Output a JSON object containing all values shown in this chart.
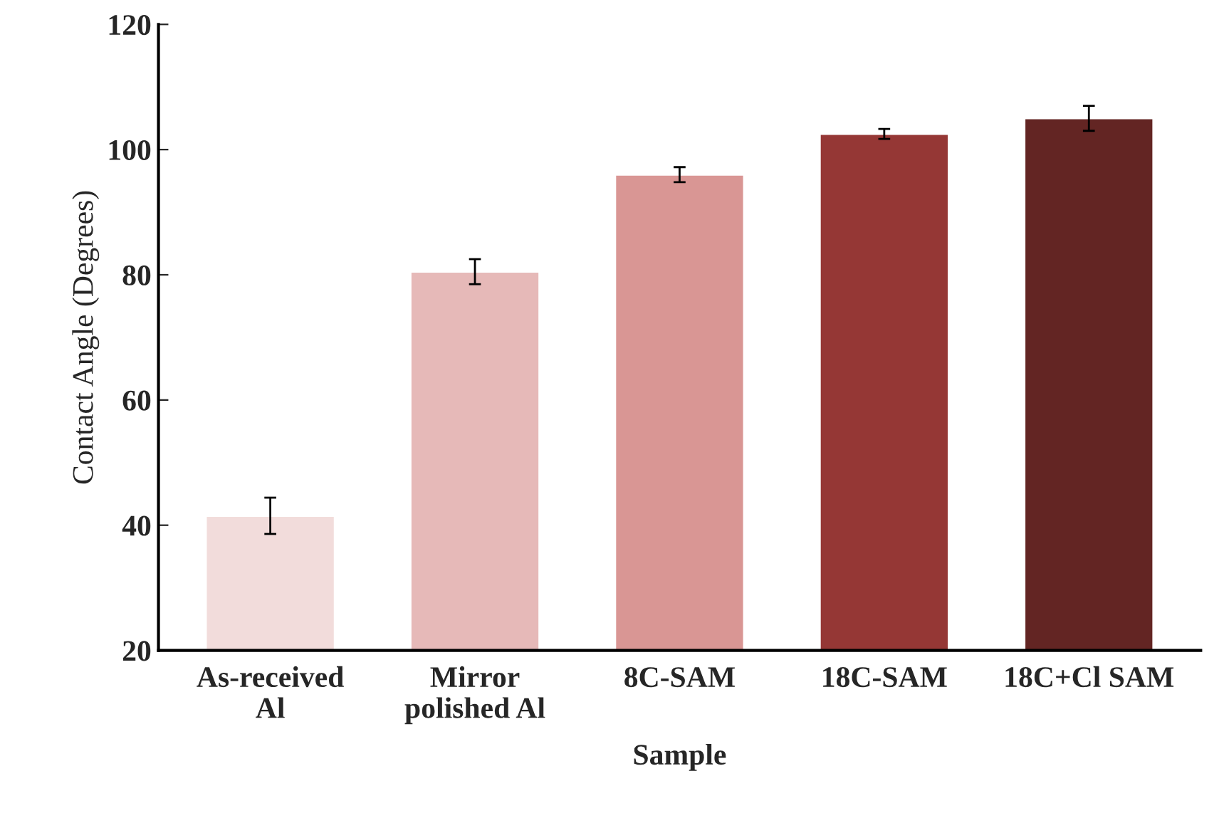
{
  "chart_data": {
    "type": "bar",
    "xlabel": "Sample",
    "ylabel": "Contact Angle (Degrees)",
    "categories": [
      "As-received\nAl",
      "Mirror\npolished Al",
      "8C-SAM",
      "18C-SAM",
      "18C+Cl SAM"
    ],
    "values": [
      41.5,
      80.5,
      96,
      102.5,
      105
    ],
    "errors": [
      2.9,
      2,
      1.2,
      0.8,
      2
    ],
    "colors": [
      "#f2dcdb",
      "#e6b9b8",
      "#d99694",
      "#953735",
      "#632523"
    ],
    "ylim": [
      20,
      120
    ],
    "yticks": [
      20,
      40,
      60,
      80,
      100,
      120
    ],
    "grid": false,
    "legend": false
  }
}
